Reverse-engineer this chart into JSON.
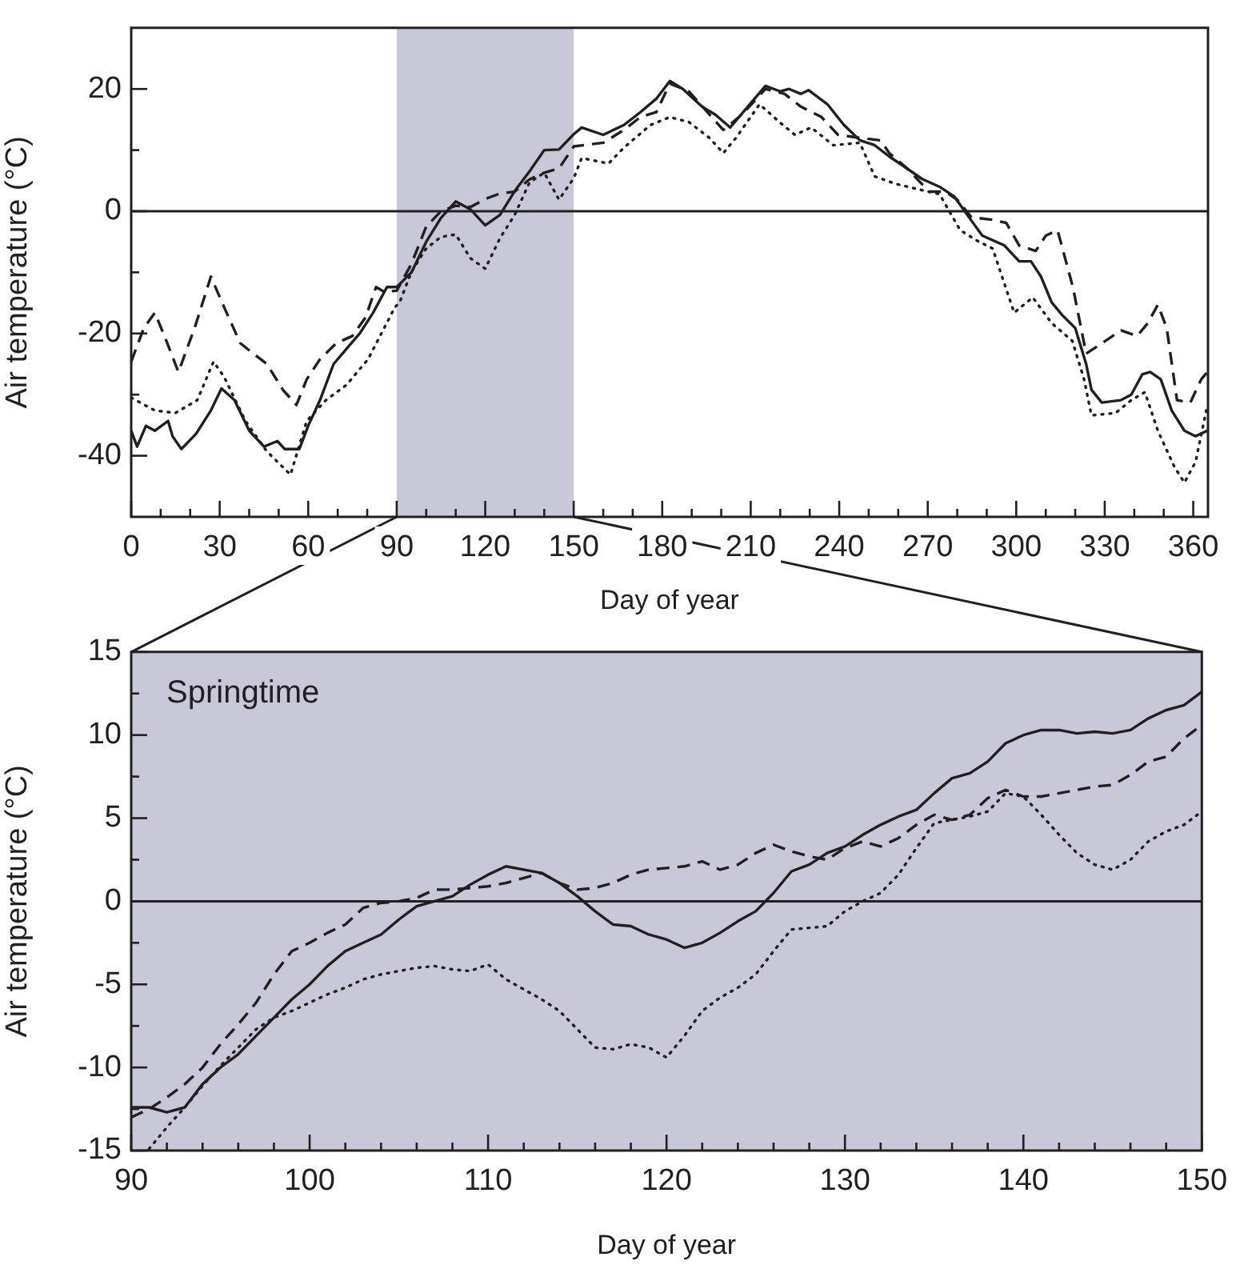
{
  "chart_data": [
    {
      "type": "line",
      "xlabel": "Day of year",
      "ylabel": "Air temperature (°C)",
      "xlim": [
        0,
        365
      ],
      "ylim": [
        -50,
        30
      ],
      "xticks": [
        0,
        {
          "value": 10,
          "label": null
        },
        {
          "value": 20,
          "label": null
        },
        30,
        {
          "value": 40,
          "label": null
        },
        {
          "value": 50,
          "label": null
        },
        60,
        {
          "value": 70,
          "label": null
        },
        {
          "value": 80,
          "label": null
        },
        90,
        {
          "value": 100,
          "label": null
        },
        {
          "value": 110,
          "label": null
        },
        120,
        {
          "value": 130,
          "label": null
        },
        {
          "value": 140,
          "label": null
        },
        150,
        {
          "value": 160,
          "label": null
        },
        {
          "value": 170,
          "label": null
        },
        180,
        {
          "value": 190,
          "label": null
        },
        {
          "value": 200,
          "label": null
        },
        210,
        {
          "value": 220,
          "label": null
        },
        {
          "value": 230,
          "label": null
        },
        240,
        {
          "value": 250,
          "label": null
        },
        {
          "value": 260,
          "label": null
        },
        270,
        {
          "value": 280,
          "label": null
        },
        {
          "value": 290,
          "label": null
        },
        300,
        {
          "value": 310,
          "label": null
        },
        {
          "value": 320,
          "label": null
        },
        330,
        {
          "value": 340,
          "label": null
        },
        {
          "value": 350,
          "label": null
        },
        360
      ],
      "yticks": [
        -40,
        {
          "value": -30,
          "label": null
        },
        -20,
        {
          "value": -10,
          "label": null
        },
        0,
        {
          "value": 10,
          "label": null
        },
        20
      ],
      "grid": false,
      "legend": false,
      "marker": "none",
      "bands": [
        {
          "axis": "x",
          "from": 90,
          "to": 150,
          "color": "#c8c8d8"
        }
      ],
      "ref_lines": [
        {
          "axis": "y",
          "value": 0,
          "color": "#231f20"
        }
      ],
      "series": [
        {
          "color": "#231f20",
          "line_style": "solid",
          "x": [
            0,
            2,
            5,
            8,
            12.5,
            14,
            17,
            22,
            27,
            30.6,
            35,
            40,
            45,
            49.6,
            52,
            57,
            60,
            64,
            68.6,
            73,
            77.6,
            82,
            86.7,
            90,
            95,
            100,
            105,
            110,
            115,
            120,
            125,
            130,
            135,
            140,
            145,
            150,
            152.7,
            160,
            167,
            172.6,
            178,
            182.6,
            187,
            193.5,
            198,
            203,
            209,
            215,
            220,
            223,
            227,
            229.6,
            236,
            241.6,
            247,
            252,
            257.7,
            263,
            268,
            274,
            279,
            284,
            288.5,
            296,
            301,
            305,
            308.4,
            312,
            315.6,
            320,
            323.7,
            325.5,
            329,
            335.5,
            339,
            342.7,
            345.4,
            349,
            352.7,
            357,
            360.8,
            364.8
          ],
          "values": [
            -35.9,
            -38.5,
            -35.1,
            -35.9,
            -34.3,
            -36.8,
            -38.9,
            -36.4,
            -32.6,
            -29,
            -30.9,
            -35.9,
            -38.5,
            -37.6,
            -38.9,
            -38.9,
            -35.1,
            -30.9,
            -25,
            -22.5,
            -19.9,
            -16.6,
            -12.4,
            -12.4,
            -10,
            -5,
            -1.1,
            1.6,
            0.3,
            -2.3,
            -0.6,
            3.3,
            6.5,
            10,
            10.1,
            12.6,
            13.7,
            12.5,
            14.1,
            16.2,
            18.4,
            21.3,
            20,
            17.1,
            15.8,
            13.7,
            17.1,
            20.5,
            19.6,
            20,
            19.2,
            19.8,
            17.5,
            14.1,
            11.6,
            10.8,
            8.7,
            7,
            5.3,
            4,
            2.4,
            -1,
            -4,
            -5.6,
            -8.2,
            -8.2,
            -10.7,
            -14.9,
            -17,
            -19.1,
            -25,
            -29.2,
            -31.3,
            -30.9,
            -30,
            -26.7,
            -26.3,
            -27.5,
            -32.6,
            -35.9,
            -36.8,
            -35.9
          ]
        },
        {
          "color": "#231f20",
          "line_style": "dashed",
          "x": [
            0,
            4.3,
            8,
            11.6,
            16,
            21.5,
            27,
            31.5,
            37,
            41.4,
            46,
            51.4,
            56,
            59.5,
            64,
            69.5,
            75,
            79.4,
            83,
            85.8,
            90,
            95,
            100,
            105,
            110,
            115,
            120,
            125,
            130,
            135,
            140,
            145,
            150,
            160,
            167,
            172.6,
            178,
            182.6,
            189,
            194.4,
            200.7,
            207,
            215,
            221.5,
            227,
            234,
            239.6,
            247,
            254,
            257,
            263,
            270.5,
            276,
            280,
            284.8,
            292,
            296.6,
            301,
            306.6,
            310,
            314,
            319.2,
            323.7,
            329,
            335.5,
            341,
            344.6,
            348,
            351,
            354.5,
            359,
            362.7,
            364.8
          ],
          "values": [
            -24.6,
            -19.1,
            -16.6,
            -20.8,
            -26.3,
            -19.1,
            -10.7,
            -15.7,
            -21.6,
            -23.3,
            -25,
            -29.2,
            -31.7,
            -27.5,
            -24.2,
            -21.6,
            -20.4,
            -17.4,
            -12.4,
            -13.2,
            -13,
            -8.6,
            -2.5,
            0,
            0.9,
            0.7,
            2,
            2.9,
            3.2,
            5.2,
            6.3,
            7,
            10.6,
            11.2,
            13.3,
            15.4,
            16.2,
            20.9,
            19.6,
            16.7,
            13.3,
            15.8,
            20,
            19.2,
            17.1,
            15.4,
            12.5,
            12,
            11.6,
            9.5,
            7,
            3.2,
            3.2,
            1.9,
            -1,
            -1.4,
            -1.9,
            -5.6,
            -6.5,
            -4,
            -3.1,
            -12.4,
            -23.3,
            -21.6,
            -19.5,
            -20.4,
            -18.3,
            -15.3,
            -19.1,
            -30.9,
            -31.3,
            -27.5,
            -26.3
          ]
        },
        {
          "color": "#231f20",
          "line_style": "dotted",
          "x": [
            0,
            8,
            15,
            22.4,
            27.9,
            31.5,
            38.7,
            46,
            54,
            59.5,
            66,
            73,
            80.3,
            89.4,
            91,
            95,
            100,
            105,
            110,
            115,
            120,
            125,
            130,
            135,
            140,
            145,
            150,
            152.7,
            161.8,
            167,
            176,
            182.6,
            189,
            196,
            200.7,
            205,
            213,
            219.7,
            225,
            230.5,
            238,
            247,
            252,
            259,
            266.7,
            274,
            281,
            286.7,
            292,
            299.3,
            305.6,
            312,
            319,
            323,
            325.5,
            333.7,
            339,
            343.6,
            348,
            353.6,
            357,
            360.8,
            364.4
          ],
          "values": [
            -30.5,
            -32.6,
            -33,
            -30.9,
            -24.6,
            -27.1,
            -34.3,
            -39.3,
            -43.1,
            -34.3,
            -30.9,
            -28.4,
            -24.2,
            -15.7,
            -14.9,
            -9.9,
            -6.1,
            -4.2,
            -3.8,
            -7.7,
            -9.4,
            -4.4,
            -0.6,
            4.7,
            6.3,
            1.9,
            5.4,
            8.7,
            7.8,
            10.4,
            14.1,
            15.4,
            14.6,
            12,
            9.5,
            12,
            17.5,
            14.6,
            12.5,
            13.7,
            10.8,
            11.2,
            5.7,
            4.5,
            3.6,
            2.8,
            -3.1,
            -4.8,
            -6.1,
            -16.6,
            -14.1,
            -18.3,
            -21.2,
            -27.5,
            -33.4,
            -33,
            -30.9,
            -29.6,
            -35.9,
            -41.8,
            -44.4,
            -41,
            -32.6
          ]
        }
      ]
    },
    {
      "type": "line",
      "xlabel": "Day of year",
      "ylabel": "Air temperature (°C)",
      "xlim": [
        90,
        150
      ],
      "ylim": [
        -15,
        15
      ],
      "xticks": [
        90,
        {
          "value": 92,
          "label": null
        },
        {
          "value": 94,
          "label": null
        },
        {
          "value": 96,
          "label": null
        },
        {
          "value": 98,
          "label": null
        },
        100,
        {
          "value": 102,
          "label": null
        },
        {
          "value": 104,
          "label": null
        },
        {
          "value": 106,
          "label": null
        },
        {
          "value": 108,
          "label": null
        },
        110,
        {
          "value": 112,
          "label": null
        },
        {
          "value": 114,
          "label": null
        },
        {
          "value": 116,
          "label": null
        },
        {
          "value": 118,
          "label": null
        },
        120,
        {
          "value": 122,
          "label": null
        },
        {
          "value": 124,
          "label": null
        },
        {
          "value": 126,
          "label": null
        },
        {
          "value": 128,
          "label": null
        },
        130,
        {
          "value": 132,
          "label": null
        },
        {
          "value": 134,
          "label": null
        },
        {
          "value": 136,
          "label": null
        },
        {
          "value": 138,
          "label": null
        },
        140,
        {
          "value": 142,
          "label": null
        },
        {
          "value": 144,
          "label": null
        },
        {
          "value": 146,
          "label": null
        },
        {
          "value": 148,
          "label": null
        },
        150
      ],
      "yticks": [
        -15,
        {
          "value": -12.5,
          "label": null
        },
        -10,
        {
          "value": -7.5,
          "label": null
        },
        -5,
        {
          "value": -2.5,
          "label": null
        },
        0,
        {
          "value": 2.5,
          "label": null
        },
        5,
        {
          "value": 7.5,
          "label": null
        },
        10,
        {
          "value": 12.5,
          "label": null
        },
        15
      ],
      "grid": false,
      "legend": false,
      "marker": "none",
      "annotations": [
        "Springtime"
      ],
      "bands": [
        {
          "axis": "x",
          "from": 90,
          "to": 150,
          "color": "#c8c8d8"
        }
      ],
      "ref_lines": [
        {
          "axis": "y",
          "value": 0,
          "color": "#231f20"
        }
      ],
      "series": [
        {
          "color": "#231f20",
          "line_style": "solid",
          "x": [
            90,
            91,
            92,
            93,
            94,
            95,
            96,
            97,
            98,
            99,
            100,
            101,
            102,
            103,
            104,
            105,
            106,
            107,
            108,
            109,
            110,
            111,
            112,
            113,
            114,
            115,
            116,
            117,
            118,
            119,
            120,
            121,
            122,
            123,
            124,
            125,
            126,
            127,
            128,
            129,
            130,
            131,
            132,
            133,
            134,
            135,
            136,
            137,
            138,
            139,
            140,
            141,
            142,
            143,
            144,
            145,
            146,
            147,
            148,
            149,
            150
          ],
          "values": [
            -12.4,
            -12.4,
            -12.7,
            -12.4,
            -11,
            -10,
            -9.2,
            -8.1,
            -7,
            -5.9,
            -5,
            -3.9,
            -3,
            -2.5,
            -2,
            -1.1,
            -0.3,
            0,
            0.3,
            1,
            1.6,
            2.1,
            1.9,
            1.7,
            1.1,
            0.3,
            -0.6,
            -1.4,
            -1.5,
            -2,
            -2.3,
            -2.8,
            -2.5,
            -1.9,
            -1.2,
            -0.6,
            0.5,
            1.8,
            2.2,
            2.9,
            3.3,
            4,
            4.6,
            5.1,
            5.5,
            6.5,
            7.4,
            7.7,
            8.4,
            9.5,
            10,
            10.3,
            10.3,
            10.1,
            10.2,
            10.1,
            10.3,
            11,
            11.5,
            11.8,
            12.6
          ]
        },
        {
          "color": "#231f20",
          "line_style": "dashed",
          "x": [
            90,
            91,
            92,
            93,
            94,
            95,
            96,
            97,
            98,
            99,
            100,
            101,
            102,
            103,
            104,
            105,
            106,
            107,
            108,
            109,
            110,
            111,
            112,
            113,
            114,
            115,
            116,
            117,
            118,
            119,
            120,
            121,
            122,
            123,
            124,
            125,
            126,
            127,
            128,
            129,
            130,
            131,
            132,
            133,
            134,
            135,
            136,
            137,
            138,
            139,
            140,
            141,
            142,
            143,
            144,
            145,
            146,
            147,
            148,
            149,
            150
          ],
          "values": [
            -13,
            -12.5,
            -11.8,
            -11,
            -10,
            -8.6,
            -7.4,
            -6.1,
            -4.4,
            -3,
            -2.5,
            -1.9,
            -1.4,
            -0.4,
            -0.1,
            0,
            0.2,
            0.7,
            0.7,
            0.8,
            0.9,
            1.1,
            1.4,
            1.7,
            1.1,
            0.7,
            0.8,
            1.1,
            1.6,
            1.9,
            2,
            2.1,
            2.4,
            1.9,
            2.2,
            2.9,
            3.4,
            3,
            2.7,
            2.5,
            3.2,
            3.6,
            3.3,
            3.8,
            4.6,
            5.2,
            4.9,
            5.2,
            6.2,
            6.7,
            6.3,
            6.3,
            6.5,
            6.7,
            6.9,
            7,
            7.6,
            8.4,
            8.7,
            9.8,
            10.6
          ]
        },
        {
          "color": "#231f20",
          "line_style": "dotted",
          "x": [
            91,
            92,
            93,
            94,
            95,
            96,
            97,
            98,
            99,
            100,
            101,
            102,
            103,
            104,
            105,
            106,
            107,
            108,
            109,
            110,
            111,
            112,
            113,
            114,
            115,
            116,
            117,
            118,
            119,
            120,
            121,
            122,
            123,
            124,
            125,
            126,
            127,
            128,
            129,
            130,
            131,
            132,
            133,
            134,
            135,
            136,
            137,
            138,
            139,
            140,
            141,
            142,
            143,
            144,
            145,
            146,
            147,
            148,
            149,
            150
          ],
          "values": [
            -14.9,
            -13.6,
            -12.4,
            -11.1,
            -9.9,
            -8.8,
            -7.7,
            -7,
            -6.6,
            -6.1,
            -5.6,
            -5.2,
            -4.7,
            -4.4,
            -4.2,
            -4,
            -3.9,
            -4.1,
            -4.2,
            -3.8,
            -4.7,
            -5.3,
            -5.9,
            -6.6,
            -7.7,
            -8.8,
            -8.9,
            -8.6,
            -8.8,
            -9.4,
            -8.1,
            -6.6,
            -5.8,
            -5.2,
            -4.4,
            -3,
            -1.7,
            -1.6,
            -1.5,
            -0.6,
            0,
            0.5,
            1.6,
            3.2,
            4.7,
            4.9,
            5.1,
            5.4,
            6.5,
            6.3,
            5.2,
            4,
            2.9,
            2.2,
            1.9,
            2.5,
            3.6,
            4.2,
            4.6,
            5.4
          ]
        }
      ]
    }
  ]
}
